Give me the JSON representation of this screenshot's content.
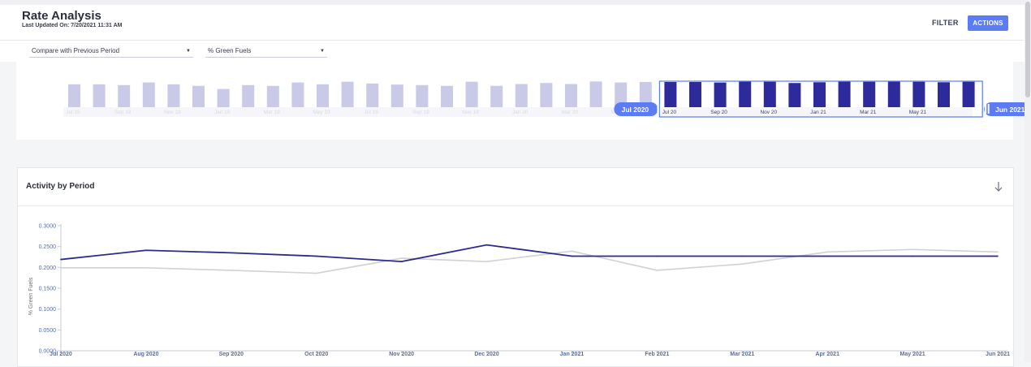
{
  "header": {
    "title": "Rate Analysis",
    "last_updated": "Last Updated On: 7/20/2021 11:31 AM",
    "filter_label": "FILTER",
    "actions_label": "ACTIONS"
  },
  "controls": {
    "compare_value": "Compare with Previous Period",
    "metric_value": "% Green Fuels"
  },
  "brush": {
    "tick_labels": [
      "Jul 18",
      "Sep 18",
      "Nov 18",
      "Jan 19",
      "Mar 19",
      "May 19",
      "Jul 19",
      "Sep 19",
      "Nov 19",
      "Jan 20",
      "Mar 20",
      "May 20",
      "Jul 20",
      "Sep 20",
      "Nov 20",
      "Jan 21",
      "Mar 21",
      "May 21"
    ],
    "range_start_label": "Jul 2020",
    "range_end_label": "Jun 2021",
    "bar_heights_pct": [
      0.88,
      0.88,
      0.85,
      0.95,
      0.88,
      0.82,
      0.7,
      0.85,
      0.82,
      0.95,
      0.88,
      0.98,
      0.91,
      0.87,
      0.85,
      0.82,
      0.98,
      0.82,
      0.89,
      0.93,
      0.89,
      0.99,
      0.95,
      0.97,
      0.97,
      0.97,
      0.95,
      1.0,
      0.98,
      0.93,
      0.96,
      1.0,
      0.98,
      1.0,
      0.98,
      0.96,
      0.98
    ],
    "selected_start_index": 24,
    "colors": {
      "unselected": "#c9c9e8",
      "selected": "#2d2a9c",
      "handle": "#5b7cf6"
    }
  },
  "panel": {
    "title": "Activity by Period",
    "download_icon": "arrow-down-icon"
  },
  "chart_data": {
    "type": "line",
    "title": "",
    "xlabel": "",
    "ylabel": "% Green Fuels",
    "ylim": [
      0,
      0.3
    ],
    "yticks": [
      "0.0000",
      "0.0500",
      "0.1000",
      "0.1500",
      "0.2000",
      "0.2500",
      "0.3000"
    ],
    "categories": [
      "Jul 2020",
      "Aug 2020",
      "Sep 2020",
      "Oct 2020",
      "Nov 2020",
      "Dec 2020",
      "Jan 2021",
      "Feb 2021",
      "Mar 2021",
      "Apr 2021",
      "May 2021",
      "Jun 2021"
    ],
    "series": [
      {
        "values": [
          0.219,
          0.241,
          0.235,
          0.227,
          0.214,
          0.254,
          0.227,
          0.227,
          0.227,
          0.227,
          0.227,
          0.227
        ],
        "color": "#2d2a8c"
      },
      {
        "values": [
          0.199,
          0.199,
          0.193,
          0.186,
          0.222,
          0.214,
          0.239,
          0.193,
          0.208,
          0.237,
          0.243,
          0.237
        ],
        "color": "#d0d0d6"
      }
    ],
    "grid": false,
    "legend": "none"
  }
}
